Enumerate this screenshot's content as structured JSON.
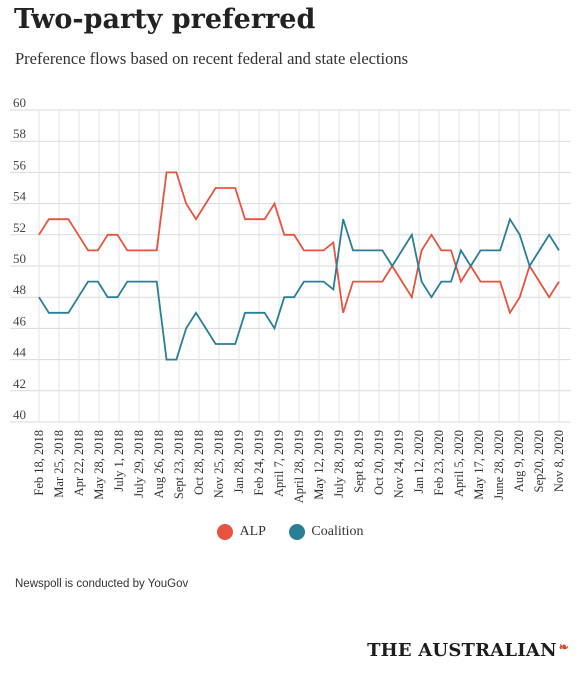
{
  "page": {
    "title": "Two-party preferred",
    "subtitle": "Preference flows based on recent federal and state elections",
    "note": "Newspoll is conducted by YouGov",
    "brand": "THE AUSTRALIAN",
    "brand_mark_icon": "flame-icon",
    "brand_mark_glyph": "❧"
  },
  "chart_data": {
    "type": "line",
    "title": "Two-party preferred",
    "subtitle": "Preference flows based on recent federal and state elections",
    "xlabel": "",
    "ylabel": "",
    "ylim": [
      40,
      60
    ],
    "yticks": [
      40,
      42,
      44,
      46,
      48,
      50,
      52,
      54,
      56,
      58,
      60
    ],
    "grid": true,
    "legend_position": "bottom-center",
    "x_tick_labels": [
      "Feb 18, 2018",
      "Mar 25, 2018",
      "Apr 22, 2018",
      "May 28, 2018",
      "July 1, 2018",
      "July 29, 2018",
      "Aug 26, 2018",
      "Sept 23, 2018",
      "Oct 28, 2018",
      "Nov 25, 2018",
      "Jan 28, 2019",
      "Feb 24, 2019",
      "April 7, 2019",
      "April 28, 2019",
      "May 12, 2019",
      "July 28, 2019",
      "Sept 8, 2019",
      "Oct 20, 2019",
      "Nov 24, 2019",
      "Jan 12, 2020",
      "Feb 23, 2020",
      "April 5, 2020",
      "May 17, 2020",
      "June 28, 2020",
      "Aug 9, 2020",
      "Sep20, 2020",
      "Nov 8, 2020"
    ],
    "series": [
      {
        "name": "ALP",
        "color": "#e8533f",
        "values": [
          52,
          53,
          53,
          53,
          52,
          51,
          51,
          52,
          52,
          51,
          51,
          51,
          51,
          56,
          56,
          54,
          53,
          54,
          55,
          55,
          55,
          53,
          53,
          53,
          54,
          52,
          52,
          51,
          51,
          51,
          51.5,
          47,
          49,
          49,
          49,
          49,
          50,
          49,
          48,
          51,
          52,
          51,
          51,
          49,
          50,
          49,
          49,
          49,
          47,
          48,
          50,
          49,
          48,
          49
        ]
      },
      {
        "name": "Coalition",
        "color": "#2a7f96",
        "values": [
          48,
          47,
          47,
          47,
          48,
          49,
          49,
          48,
          48,
          49,
          49,
          49,
          49,
          44,
          44,
          46,
          47,
          46,
          45,
          45,
          45,
          47,
          47,
          47,
          46,
          48,
          48,
          49,
          49,
          49,
          48.5,
          53,
          51,
          51,
          51,
          51,
          50,
          51,
          52,
          49,
          48,
          49,
          49,
          51,
          50,
          51,
          51,
          51,
          53,
          52,
          50,
          51,
          52,
          51
        ]
      }
    ]
  }
}
